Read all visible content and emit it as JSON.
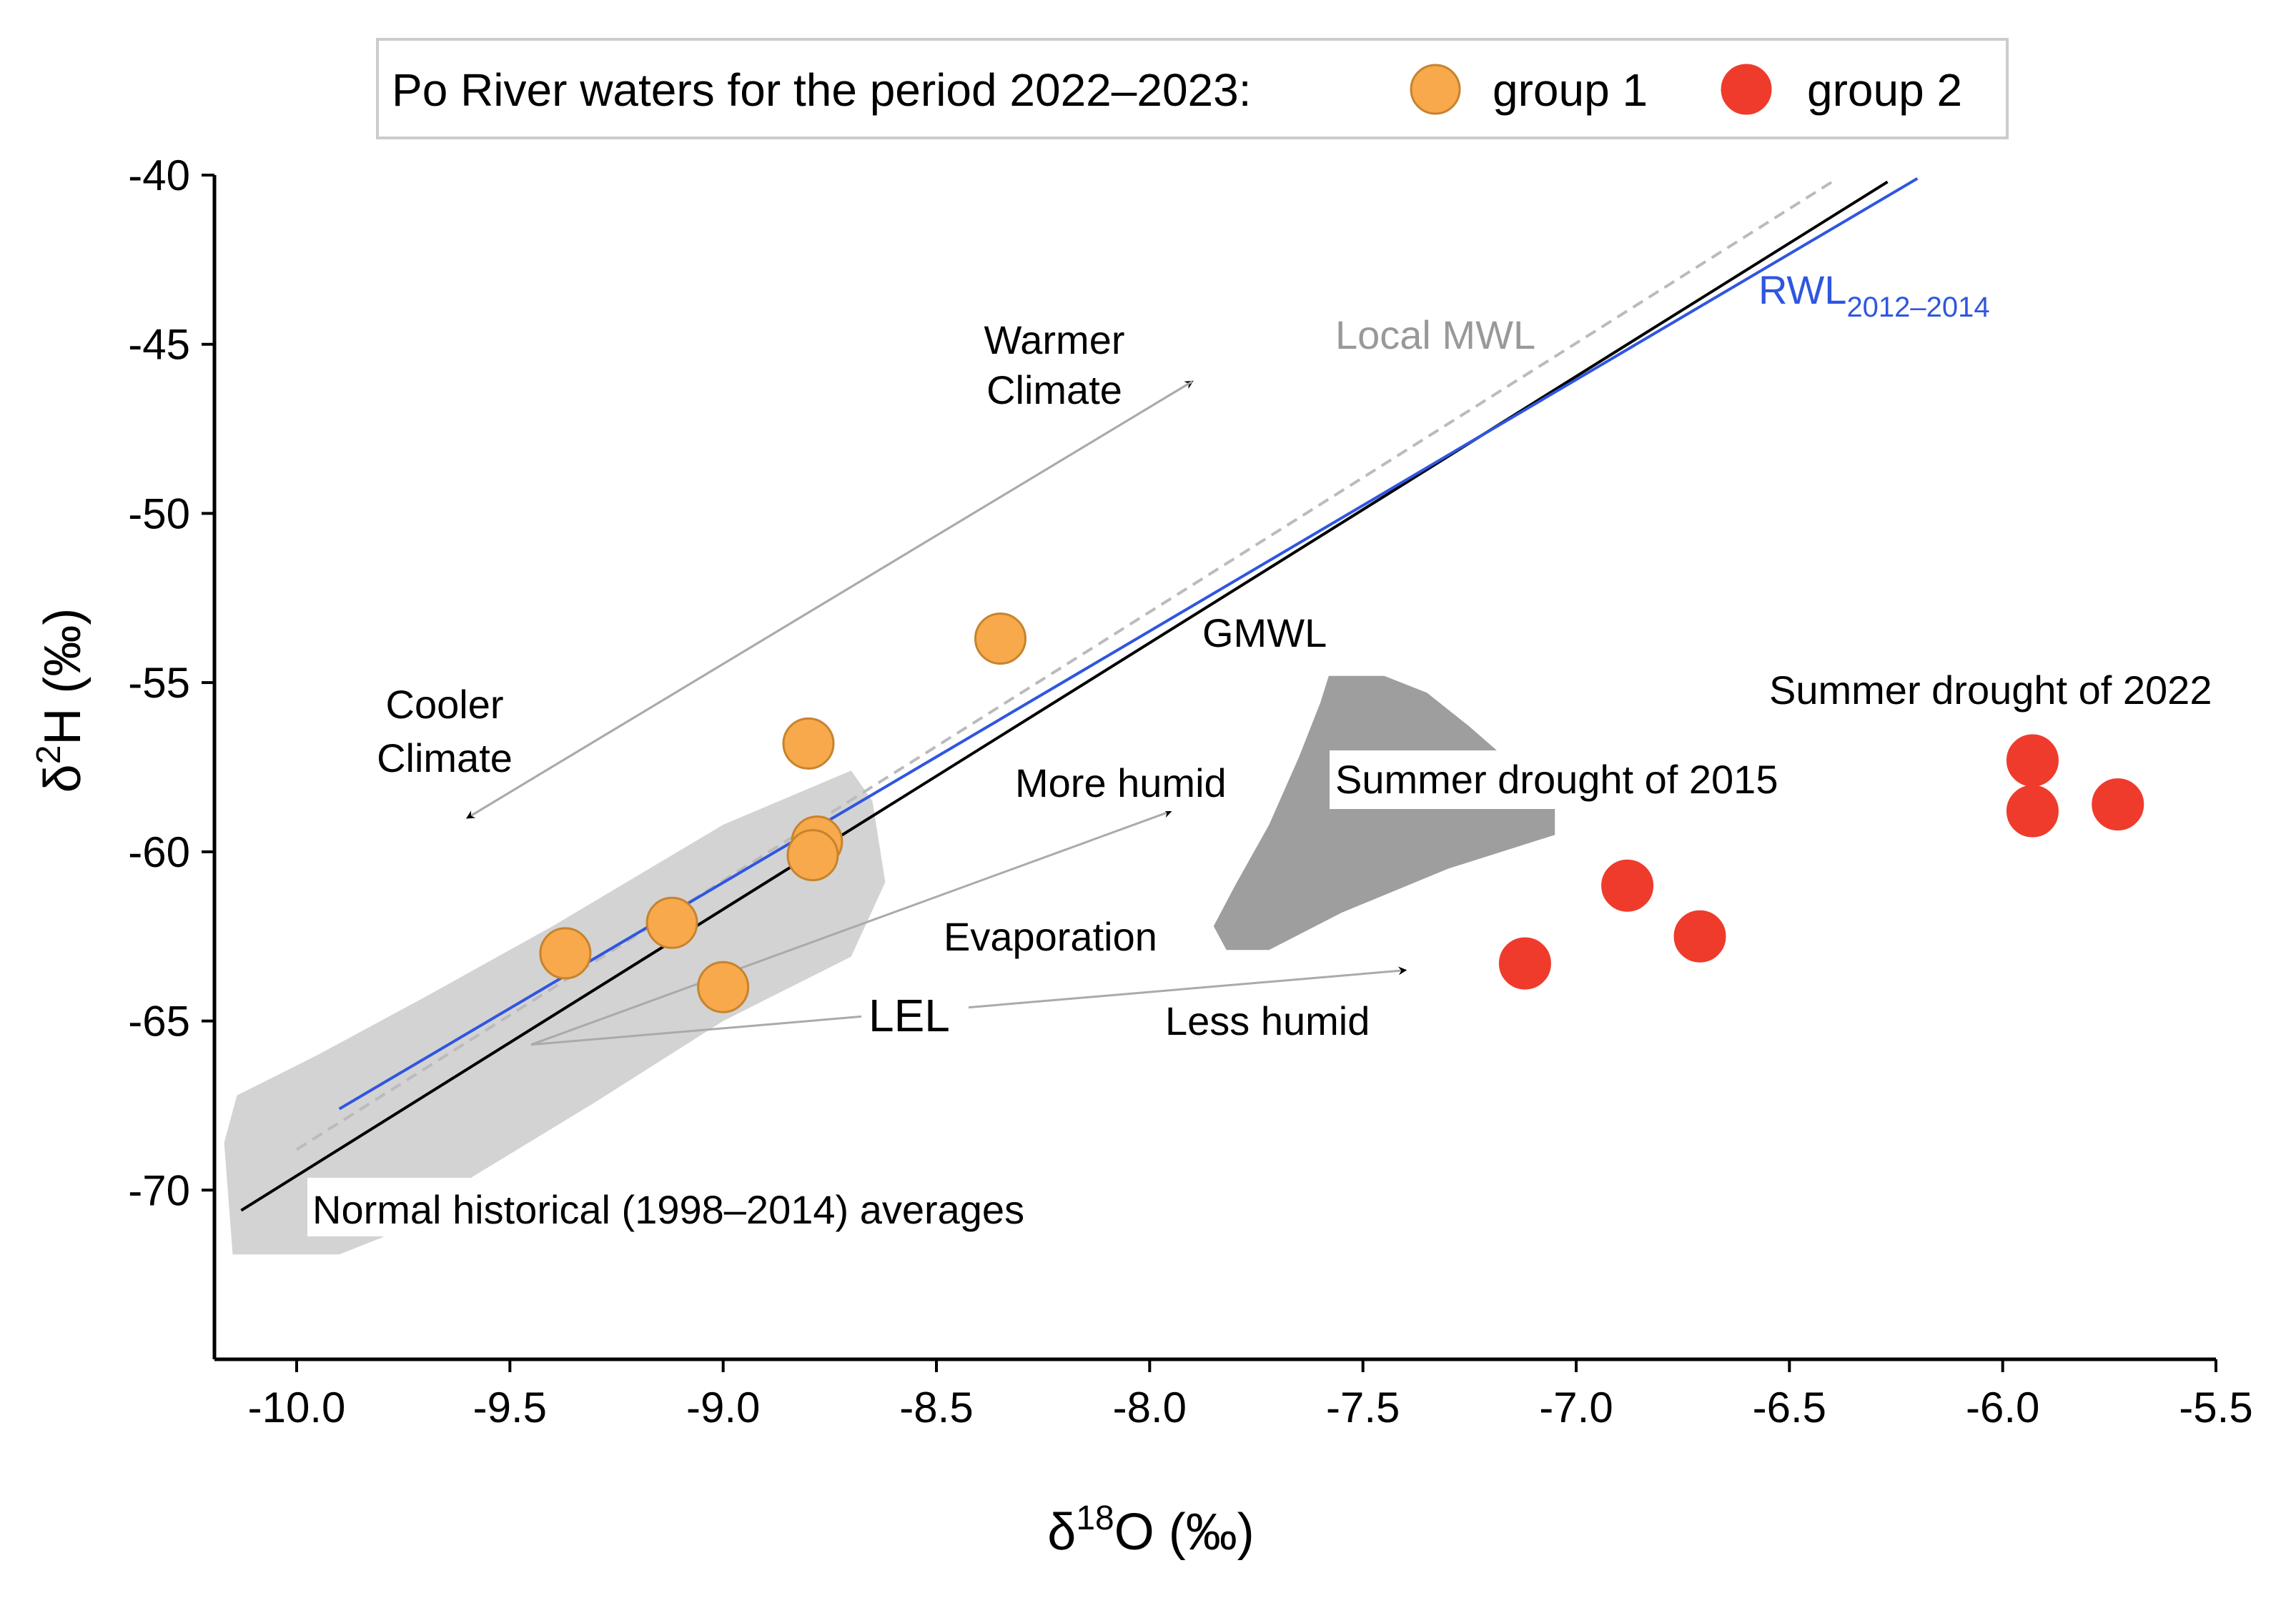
{
  "chart_data": {
    "type": "scatter",
    "title": "",
    "xlabel": {
      "main": "δ",
      "sup": "18",
      "rest": "O (‰)"
    },
    "ylabel": {
      "main": "δ",
      "sup": "2",
      "rest": "H (‰)"
    },
    "xlim": [
      -10.2,
      -5.5
    ],
    "ylim": [
      -75,
      -40
    ],
    "x_ticks": [
      {
        "value": -10.0,
        "label": "-10.0"
      },
      {
        "value": -9.5,
        "label": "-9.5"
      },
      {
        "value": -9.0,
        "label": "-9.0"
      },
      {
        "value": -8.5,
        "label": "-8.5"
      },
      {
        "value": -8.0,
        "label": "-8.0"
      },
      {
        "value": -7.5,
        "label": "-7.5"
      },
      {
        "value": -7.0,
        "label": "-7.0"
      },
      {
        "value": -6.5,
        "label": "-6.5"
      },
      {
        "value": -6.0,
        "label": "-6.0"
      },
      {
        "value": -5.5,
        "label": "-5.5"
      }
    ],
    "y_ticks": [
      {
        "value": -40,
        "label": "-40"
      },
      {
        "value": -45,
        "label": "-45"
      },
      {
        "value": -50,
        "label": "-50"
      },
      {
        "value": -55,
        "label": "-55"
      },
      {
        "value": -60,
        "label": "-60"
      },
      {
        "value": -65,
        "label": "-65"
      },
      {
        "value": -70,
        "label": "-70"
      }
    ],
    "legend": {
      "title": "Po River waters for the period 2022–2023:",
      "placement": "top"
    },
    "series": [
      {
        "name": "group 1",
        "color": "#f7a94b",
        "edge_color": "#c8832e",
        "points": [
          {
            "x": -8.35,
            "y": -53.7
          },
          {
            "x": -8.8,
            "y": -56.8
          },
          {
            "x": -8.78,
            "y": -59.7
          },
          {
            "x": -8.79,
            "y": -60.1
          },
          {
            "x": -9.12,
            "y": -62.1
          },
          {
            "x": -9.37,
            "y": -63.0
          },
          {
            "x": -9.0,
            "y": -64.0
          }
        ]
      },
      {
        "name": "group 2",
        "color": "#ef3b2c",
        "edge_color": "#ef3b2c",
        "points": [
          {
            "x": -5.93,
            "y": -57.3
          },
          {
            "x": -5.93,
            "y": -58.8
          },
          {
            "x": -5.73,
            "y": -58.6
          },
          {
            "x": -6.88,
            "y": -61.0
          },
          {
            "x": -6.71,
            "y": -62.5
          },
          {
            "x": -7.12,
            "y": -63.3
          }
        ]
      }
    ],
    "lines": [
      {
        "name": "Local MWL",
        "color": "#bbbbbb",
        "dash": true,
        "x1": -10.0,
        "y1": -68.8,
        "x2": -6.4,
        "y2": -40.2
      },
      {
        "name": "GMWL",
        "color": "#000000",
        "dash": false,
        "x1": -10.13,
        "y1": -70.6,
        "x2": -6.27,
        "y2": -40.2
      },
      {
        "name": "RWL",
        "color": "#2f56e0",
        "dash": false,
        "x1": -9.9,
        "y1": -67.6,
        "x2": -6.2,
        "y2": -40.1
      }
    ],
    "regions": [
      {
        "name": "normal-historical-region",
        "color": "#d3d3d3",
        "points": [
          [
            -10.14,
            -67.2
          ],
          [
            -9.95,
            -66.0
          ],
          [
            -9.7,
            -64.3
          ],
          [
            -9.4,
            -62.2
          ],
          [
            -9.0,
            -59.2
          ],
          [
            -8.7,
            -57.6
          ],
          [
            -8.65,
            -58.5
          ],
          [
            -8.62,
            -60.9
          ],
          [
            -8.7,
            -63.1
          ],
          [
            -9.0,
            -65.0
          ],
          [
            -9.3,
            -67.4
          ],
          [
            -9.6,
            -69.7
          ],
          [
            -9.8,
            -71.4
          ],
          [
            -9.9,
            -71.9
          ],
          [
            -10.15,
            -71.9
          ],
          [
            -10.17,
            -68.6
          ]
        ]
      },
      {
        "name": "summer-2015-region",
        "color": "#9e9e9e",
        "points": [
          [
            -7.58,
            -54.8
          ],
          [
            -7.45,
            -54.8
          ],
          [
            -7.35,
            -55.3
          ],
          [
            -7.25,
            -56.3
          ],
          [
            -7.15,
            -57.4
          ],
          [
            -7.05,
            -58.7
          ],
          [
            -7.05,
            -59.5
          ],
          [
            -7.3,
            -60.5
          ],
          [
            -7.55,
            -61.8
          ],
          [
            -7.72,
            -62.9
          ],
          [
            -7.82,
            -62.9
          ],
          [
            -7.85,
            -62.2
          ],
          [
            -7.8,
            -61.0
          ],
          [
            -7.72,
            -59.2
          ],
          [
            -7.65,
            -57.2
          ],
          [
            -7.6,
            -55.6
          ]
        ]
      }
    ],
    "arrows": [
      {
        "name": "warmer-climate-arrow",
        "x1": -9.6,
        "y1": -59.0,
        "x2": -7.9,
        "y2": -46.1
      },
      {
        "name": "cooler-climate-arrow",
        "x1": -7.9,
        "y1": -46.1,
        "x2": -9.6,
        "y2": -59.0
      },
      {
        "name": "more-humid-arrow",
        "x1": -9.45,
        "y1": -65.7,
        "x2": -7.95,
        "y2": -58.8
      },
      {
        "name": "less-humid-arrow",
        "x1": -9.45,
        "y1": -65.7,
        "x2": -7.4,
        "y2": -63.5
      }
    ],
    "annotations": {
      "warmer_1": "Warmer",
      "warmer_2": "Climate",
      "cooler_1": "Cooler",
      "cooler_2": "Climate",
      "local_mwl": "Local MWL",
      "rwl": "RWL",
      "rwl_sub": "2012–2014",
      "gmwl": "GMWL",
      "more_humid": "More humid",
      "evaporation": "Evaporation",
      "lel": "LEL",
      "less_humid": "Less humid",
      "summer_2015": "Summer drought of 2015",
      "summer_2022": "Summer drought of 2022",
      "normal_historical": "Normal historical (1998–2014) averages"
    }
  }
}
